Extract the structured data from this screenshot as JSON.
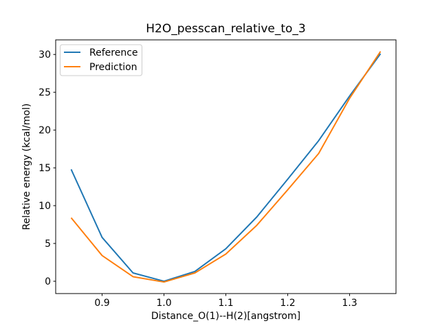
{
  "window": {
    "background": "#ffffff"
  },
  "chart_data": {
    "type": "line",
    "title": "H2O_pesscan_relative_to_3",
    "xlabel": "Distance_O(1)--H(2)[angstrom]",
    "ylabel": "Relative energy (kcal/mol)",
    "x": [
      0.85,
      0.9,
      0.95,
      1.0,
      1.05,
      1.1,
      1.15,
      1.2,
      1.25,
      1.3,
      1.35
    ],
    "series": [
      {
        "name": "Reference",
        "color": "#1f77b4",
        "values": [
          14.8,
          5.8,
          1.1,
          0.0,
          1.3,
          4.3,
          8.5,
          13.5,
          18.6,
          24.5,
          30.1
        ]
      },
      {
        "name": "Prediction",
        "color": "#ff7f0e",
        "values": [
          8.4,
          3.4,
          0.6,
          -0.1,
          1.1,
          3.6,
          7.4,
          12.1,
          16.9,
          24.2,
          30.4
        ]
      }
    ],
    "xlim": [
      0.825,
      1.375
    ],
    "ylim": [
      -1.63,
      31.93
    ],
    "xticks": {
      "values": [
        0.9,
        1.0,
        1.1,
        1.2,
        1.3
      ],
      "labels": [
        "0.9",
        "1.0",
        "1.1",
        "1.2",
        "1.3"
      ]
    },
    "yticks": {
      "values": [
        0,
        5,
        10,
        15,
        20,
        25,
        30
      ],
      "labels": [
        "0",
        "5",
        "10",
        "15",
        "20",
        "25",
        "30"
      ]
    },
    "grid": false,
    "legend_position": "upper left",
    "axis_color": "#000000",
    "legend_border_color": "#cccccc"
  }
}
